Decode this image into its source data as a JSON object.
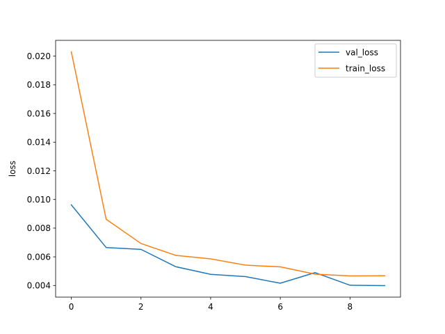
{
  "chart_data": {
    "type": "line",
    "title": "",
    "xlabel": "",
    "ylabel": "loss",
    "x": [
      0,
      1,
      2,
      3,
      4,
      5,
      6,
      7,
      8,
      9
    ],
    "series": [
      {
        "name": "val_loss",
        "color": "#1f77b4",
        "values": [
          0.00963,
          0.00665,
          0.00652,
          0.00531,
          0.00478,
          0.00462,
          0.00416,
          0.0049,
          0.00402,
          0.00399
        ]
      },
      {
        "name": "train_loss",
        "color": "#ff7f0e",
        "values": [
          0.0203,
          0.00862,
          0.00693,
          0.0061,
          0.00586,
          0.00542,
          0.0053,
          0.00479,
          0.00467,
          0.00468
        ]
      }
    ],
    "xlim": [
      -0.45,
      9.45
    ],
    "ylim": [
      0.00319,
      0.0211
    ],
    "xticks": [
      "0",
      "2",
      "4",
      "6",
      "8"
    ],
    "yticks": [
      "0.004",
      "0.006",
      "0.008",
      "0.010",
      "0.012",
      "0.014",
      "0.016",
      "0.018",
      "0.020"
    ],
    "grid": false,
    "legend_position": "upper right"
  }
}
